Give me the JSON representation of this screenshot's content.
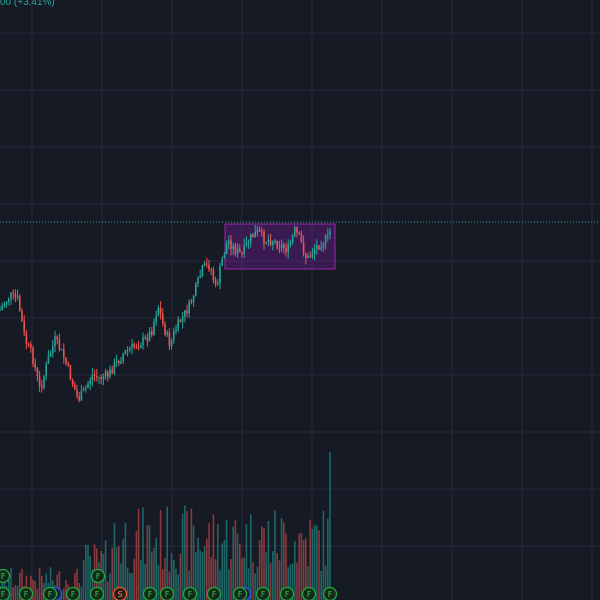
{
  "header": {
    "change_text": "00 (+3.41%)"
  },
  "colors": {
    "background": "#161a25",
    "grid": "#242937",
    "up": "#26a69a",
    "down": "#ef5350",
    "price_line": "#22ab94",
    "range_fill": "#7b1fa2",
    "range_border": "#9c27b0"
  },
  "range_box": {
    "visible": true
  },
  "event_badges": [
    {
      "letter": "F",
      "type": "earnings"
    },
    {
      "letter": "F",
      "type": "earnings"
    },
    {
      "letter": "F",
      "type": "earnings"
    },
    {
      "letter": "F",
      "type": "earnings"
    },
    {
      "letter": "D",
      "type": "dividend"
    },
    {
      "letter": "F",
      "type": "earnings"
    },
    {
      "letter": "F",
      "type": "earnings"
    },
    {
      "letter": "F",
      "type": "earnings"
    },
    {
      "letter": "S",
      "type": "split"
    },
    {
      "letter": "F",
      "type": "earnings"
    },
    {
      "letter": "F",
      "type": "earnings"
    },
    {
      "letter": "F",
      "type": "earnings"
    },
    {
      "letter": "F",
      "type": "earnings"
    },
    {
      "letter": "D",
      "type": "dividend"
    },
    {
      "letter": "F",
      "type": "earnings"
    },
    {
      "letter": "F",
      "type": "earnings"
    },
    {
      "letter": "F",
      "type": "earnings"
    },
    {
      "letter": "F",
      "type": "earnings"
    },
    {
      "letter": "F",
      "type": "earnings"
    }
  ]
}
